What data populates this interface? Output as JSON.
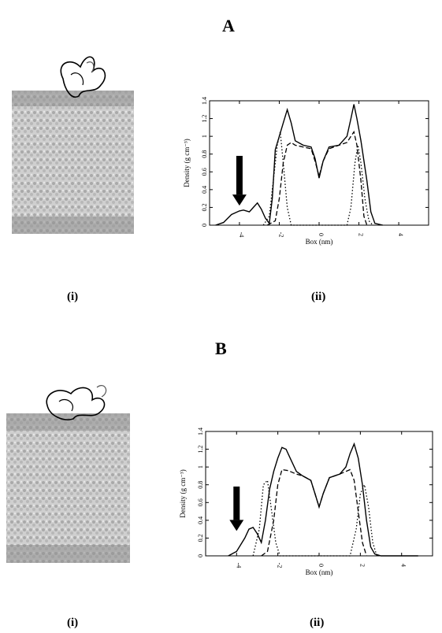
{
  "figure": {
    "panels": [
      {
        "letter": "A",
        "left_label": "(i)",
        "right_label": "(ii)"
      },
      {
        "letter": "B",
        "left_label": "(i)",
        "right_label": "(ii)"
      }
    ]
  },
  "chart_data": [
    {
      "type": "line",
      "xlabel": "Box (nm)",
      "ylabel": "Density (g cm⁻³)",
      "xlim": [
        -5.5,
        5.5
      ],
      "ylim": [
        0,
        1.4
      ],
      "xticks": [
        -4,
        -2,
        0,
        2,
        4
      ],
      "yticks": [
        0,
        0.2,
        0.4,
        0.6,
        0.8,
        1,
        1.2,
        1.4
      ],
      "ytick_labels": [
        "0",
        "0.2",
        "0.4",
        "0.6",
        "0.8",
        "1",
        "1.2",
        "1.4"
      ],
      "arrow": {
        "x": -4.0,
        "y_top": 0.78,
        "y_bottom": 0.22
      },
      "series": [
        {
          "style": "solid",
          "points": [
            [
              -5.2,
              0.0
            ],
            [
              -4.8,
              0.03
            ],
            [
              -4.4,
              0.12
            ],
            [
              -4.0,
              0.16
            ],
            [
              -3.8,
              0.17
            ],
            [
              -3.5,
              0.15
            ],
            [
              -3.3,
              0.2
            ],
            [
              -3.1,
              0.25
            ],
            [
              -2.9,
              0.18
            ],
            [
              -2.7,
              0.08
            ],
            [
              -2.5,
              0.02
            ],
            [
              -2.35,
              0.3
            ],
            [
              -2.2,
              0.85
            ],
            [
              -2.0,
              1.0
            ],
            [
              -1.8,
              1.15
            ],
            [
              -1.6,
              1.3
            ],
            [
              -1.4,
              1.15
            ],
            [
              -1.2,
              0.95
            ],
            [
              -0.8,
              0.9
            ],
            [
              -0.4,
              0.88
            ],
            [
              -0.2,
              0.75
            ],
            [
              0.0,
              0.53
            ],
            [
              0.2,
              0.72
            ],
            [
              0.5,
              0.88
            ],
            [
              1.0,
              0.9
            ],
            [
              1.4,
              1.0
            ],
            [
              1.6,
              1.2
            ],
            [
              1.75,
              1.36
            ],
            [
              1.9,
              1.2
            ],
            [
              2.1,
              0.95
            ],
            [
              2.4,
              0.5
            ],
            [
              2.6,
              0.15
            ],
            [
              2.8,
              0.02
            ],
            [
              3.2,
              0.0
            ]
          ]
        },
        {
          "style": "dashed",
          "points": [
            [
              -2.6,
              0.0
            ],
            [
              -2.2,
              0.05
            ],
            [
              -2.0,
              0.3
            ],
            [
              -1.8,
              0.7
            ],
            [
              -1.6,
              0.9
            ],
            [
              -1.4,
              0.93
            ],
            [
              -1.2,
              0.9
            ],
            [
              -0.8,
              0.88
            ],
            [
              -0.4,
              0.86
            ],
            [
              -0.2,
              0.72
            ],
            [
              0.0,
              0.55
            ],
            [
              0.2,
              0.72
            ],
            [
              0.5,
              0.86
            ],
            [
              1.0,
              0.9
            ],
            [
              1.4,
              0.93
            ],
            [
              1.6,
              1.0
            ],
            [
              1.75,
              1.05
            ],
            [
              1.9,
              0.9
            ],
            [
              2.1,
              0.5
            ],
            [
              2.25,
              0.1
            ],
            [
              2.4,
              0.0
            ]
          ]
        },
        {
          "style": "dotted",
          "points": [
            [
              -2.8,
              0.0
            ],
            [
              -2.5,
              0.1
            ],
            [
              -2.3,
              0.5
            ],
            [
              -2.1,
              0.9
            ],
            [
              -1.95,
              1.05
            ],
            [
              -1.8,
              0.7
            ],
            [
              -1.6,
              0.2
            ],
            [
              -1.4,
              0.0
            ],
            [
              1.4,
              0.0
            ],
            [
              1.6,
              0.2
            ],
            [
              1.8,
              0.7
            ],
            [
              1.95,
              0.9
            ],
            [
              2.1,
              0.7
            ],
            [
              2.3,
              0.3
            ],
            [
              2.5,
              0.05
            ],
            [
              2.7,
              0.0
            ]
          ]
        }
      ]
    },
    {
      "type": "line",
      "xlabel": "Box (nm)",
      "ylabel": "Density (g cm⁻³)",
      "xlim": [
        -5.5,
        5.5
      ],
      "ylim": [
        0,
        1.4
      ],
      "xticks": [
        -4,
        -2,
        0,
        2,
        4
      ],
      "yticks": [
        0,
        0.2,
        0.4,
        0.6,
        0.8,
        1,
        1.2,
        1.4
      ],
      "ytick_labels": [
        "0",
        "0.2",
        "0.4",
        "0.6",
        "0.8",
        "1",
        "1.2",
        "1.4"
      ],
      "arrow": {
        "x": -4.0,
        "y_top": 0.78,
        "y_bottom": 0.28
      },
      "series": [
        {
          "style": "solid",
          "points": [
            [
              -4.4,
              0.0
            ],
            [
              -4.0,
              0.05
            ],
            [
              -3.6,
              0.2
            ],
            [
              -3.4,
              0.3
            ],
            [
              -3.2,
              0.32
            ],
            [
              -3.0,
              0.25
            ],
            [
              -2.8,
              0.15
            ],
            [
              -2.6,
              0.4
            ],
            [
              -2.4,
              0.75
            ],
            [
              -2.2,
              0.95
            ],
            [
              -2.0,
              1.1
            ],
            [
              -1.8,
              1.22
            ],
            [
              -1.6,
              1.2
            ],
            [
              -1.4,
              1.1
            ],
            [
              -1.1,
              0.95
            ],
            [
              -0.8,
              0.9
            ],
            [
              -0.4,
              0.85
            ],
            [
              -0.2,
              0.7
            ],
            [
              0.0,
              0.55
            ],
            [
              0.2,
              0.7
            ],
            [
              0.5,
              0.88
            ],
            [
              1.0,
              0.92
            ],
            [
              1.3,
              1.0
            ],
            [
              1.5,
              1.15
            ],
            [
              1.7,
              1.26
            ],
            [
              1.9,
              1.1
            ],
            [
              2.1,
              0.8
            ],
            [
              2.3,
              0.4
            ],
            [
              2.5,
              0.1
            ],
            [
              2.7,
              0.02
            ],
            [
              3.0,
              0.0
            ],
            [
              4.8,
              0.0
            ]
          ]
        },
        {
          "style": "dashed",
          "points": [
            [
              -2.8,
              0.0
            ],
            [
              -2.5,
              0.05
            ],
            [
              -2.2,
              0.4
            ],
            [
              -2.0,
              0.8
            ],
            [
              -1.8,
              0.97
            ],
            [
              -1.5,
              0.96
            ],
            [
              -1.1,
              0.92
            ],
            [
              -0.8,
              0.9
            ],
            [
              -0.4,
              0.85
            ],
            [
              -0.2,
              0.7
            ],
            [
              0.0,
              0.55
            ],
            [
              0.2,
              0.7
            ],
            [
              0.5,
              0.88
            ],
            [
              1.0,
              0.92
            ],
            [
              1.3,
              0.95
            ],
            [
              1.5,
              0.97
            ],
            [
              1.7,
              0.85
            ],
            [
              1.9,
              0.5
            ],
            [
              2.1,
              0.15
            ],
            [
              2.3,
              0.0
            ]
          ]
        },
        {
          "style": "dotted",
          "points": [
            [
              -3.2,
              0.0
            ],
            [
              -2.9,
              0.3
            ],
            [
              -2.7,
              0.8
            ],
            [
              -2.5,
              0.85
            ],
            [
              -2.3,
              0.5
            ],
            [
              -2.1,
              0.15
            ],
            [
              -1.9,
              0.0
            ],
            [
              1.5,
              0.0
            ],
            [
              1.8,
              0.3
            ],
            [
              2.0,
              0.7
            ],
            [
              2.2,
              0.8
            ],
            [
              2.4,
              0.55
            ],
            [
              2.6,
              0.15
            ],
            [
              2.8,
              0.0
            ]
          ]
        }
      ]
    }
  ]
}
